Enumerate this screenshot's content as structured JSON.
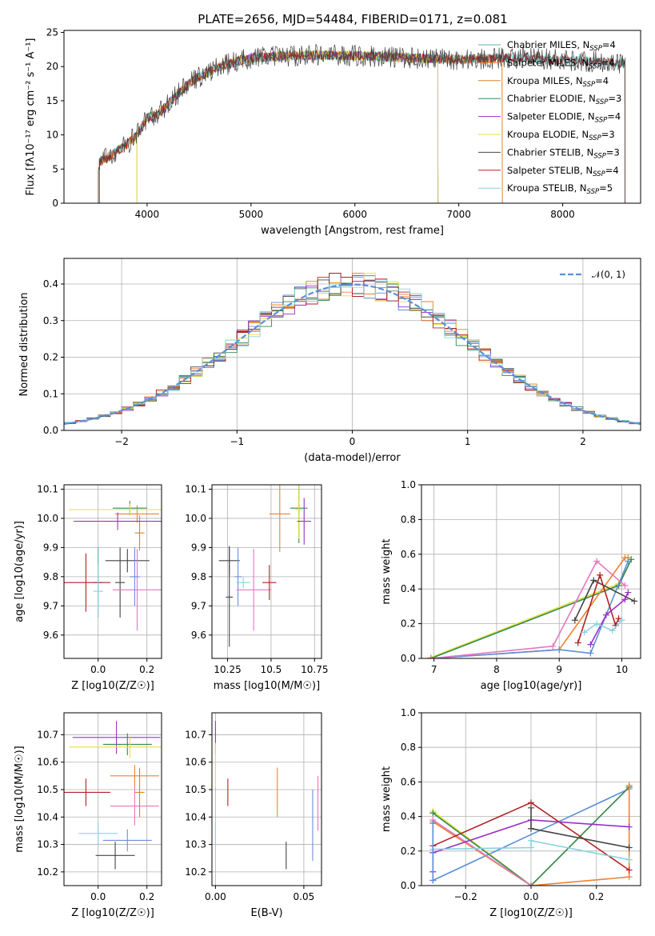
{
  "title": "PLATE=2656, MJD=54484, FIBERID=0171, z=0.081",
  "colors": {
    "Chabrier MILES": "#5ab4ac",
    "Salpeter MILES": "#f08030",
    "Kroupa MILES": "#d9832a",
    "Chabrier ELODIE": "#2e8b57",
    "Salpeter ELODIE": "#9b30c8",
    "Kroupa ELODIE": "#e8e03a",
    "Chabrier STELIB": "#444444",
    "Salpeter STELIB": "#b22222",
    "Kroupa STELIB": "#87d3e0",
    "normal": "#5b8fd8"
  },
  "chart_data": [
    {
      "type": "line",
      "panel": "spectrum",
      "title": "PLATE=2656, MJD=54484, FIBERID=0171, z=0.081",
      "xlabel": "wavelength [Angstrom, rest frame]",
      "ylabel": "Flux [fλ10⁻¹⁷ erg cm⁻² s⁻¹ A⁻¹]",
      "xlim": [
        3200,
        8750
      ],
      "ylim": [
        0,
        25.3
      ],
      "xticks": [
        4000,
        5000,
        6000,
        7000,
        8000
      ],
      "yticks": [
        0,
        5,
        10,
        15,
        20,
        25
      ],
      "legend_placement": "upper-right",
      "legend": [
        "Chabrier MILES, N_SSP=4",
        "Salpeter MILES, N_SSP=4",
        "Kroupa MILES, N_SSP=4",
        "Chabrier ELODIE, N_SSP=3",
        "Salpeter ELODIE, N_SSP=4",
        "Kroupa ELODIE, N_SSP=3",
        "Chabrier STELIB, N_SSP=3",
        "Salpeter STELIB, N_SSP=4",
        "Kroupa STELIB, N_SSP=5"
      ],
      "continuum": {
        "x": [
          3530,
          3600,
          3700,
          3800,
          3900,
          4000,
          4100,
          4200,
          4300,
          4400,
          4500,
          4700,
          5000,
          5300,
          5600,
          6000,
          6500,
          7000,
          7500,
          8000,
          8600
        ],
        "y": [
          6,
          6.5,
          7.5,
          8.5,
          10,
          12.5,
          13,
          14.5,
          16,
          17.5,
          18.5,
          20,
          21.3,
          21.5,
          21.7,
          21.6,
          21.3,
          21.0,
          21.3,
          21.0,
          20.5
        ]
      },
      "grid": false
    },
    {
      "type": "line",
      "panel": "residual-histogram",
      "xlabel": "(data-model)/error",
      "ylabel": "Normed distribution",
      "xlim": [
        -2.5,
        2.5
      ],
      "ylim": [
        0,
        0.47
      ],
      "xticks": [
        -2,
        -1,
        0,
        1,
        2
      ],
      "yticks": [
        0.0,
        0.1,
        0.2,
        0.3,
        0.4
      ],
      "legend": [
        "𝒩(0,1)"
      ],
      "legend_placement": "upper-right",
      "normal_curve": {
        "mean": 0,
        "sigma": 1
      },
      "bin_width": 0.1,
      "grid": true
    },
    {
      "type": "scatter",
      "panel": "age-vs-Z",
      "xlabel": "Z [log10(Z/Z☉)]",
      "ylabel": "age [log10(age/yr)]",
      "xlim": [
        -0.14,
        0.26
      ],
      "ylim": [
        9.52,
        10.115
      ],
      "xticks": [
        0.0,
        0.2
      ],
      "yticks": [
        9.6,
        9.7,
        9.8,
        9.9,
        10.0,
        10.1
      ],
      "points": [
        {
          "series": "Chabrier MILES",
          "x": 0.0,
          "y": 9.78,
          "xerr": 0.02,
          "yerr": 0.12
        },
        {
          "series": "Salpeter MILES",
          "x": 0.16,
          "y": 10.015,
          "xerr": 0.09,
          "yerr": 0.03
        },
        {
          "series": "Kroupa MILES",
          "x": 0.17,
          "y": 9.95,
          "xerr": 0.02,
          "yerr": 0.06
        },
        {
          "series": "Chabrier ELODIE",
          "x": 0.13,
          "y": 10.035,
          "xerr": 0.07,
          "yerr": 0.025
        },
        {
          "series": "Salpeter ELODIE",
          "x": 0.08,
          "y": 9.99,
          "xerr": 0.18,
          "yerr": 0.03
        },
        {
          "series": "Kroupa ELODIE",
          "x": 0.13,
          "y": 10.03,
          "xerr": 0.25,
          "yerr": 0.02
        },
        {
          "series": "Chabrier STELIB",
          "x": 0.12,
          "y": 9.855,
          "xerr": 0.09,
          "yerr": 0.04
        },
        {
          "series": "Chabrier STELIB",
          "x": 0.09,
          "y": 9.78,
          "xerr": 0.02,
          "yerr": 0.12
        },
        {
          "series": "Salpeter STELIB",
          "x": -0.05,
          "y": 9.78,
          "xerr": 0.1,
          "yerr": 0.1
        },
        {
          "series": "Kroupa STELIB",
          "x": 0.0,
          "y": 9.75,
          "xerr": 0.02,
          "yerr": 0.09
        },
        {
          "series": "pink",
          "x": 0.16,
          "y": 9.755,
          "xerr": 0.1,
          "yerr": 0.14
        },
        {
          "series": "blue",
          "x": 0.15,
          "y": 9.8,
          "xerr": 0.02,
          "yerr": 0.1
        }
      ],
      "grid": true
    },
    {
      "type": "scatter",
      "panel": "age-vs-mass",
      "xlabel": "mass [log10(M/M☉)]",
      "ylabel": "",
      "xlim": [
        10.16,
        10.79
      ],
      "ylim": [
        9.52,
        10.115
      ],
      "xticks": [
        10.25,
        10.5,
        10.75
      ],
      "yticks": [
        9.6,
        9.7,
        9.8,
        9.9,
        10.0,
        10.1
      ],
      "points": [
        {
          "series": "Chabrier STELIB",
          "x": 10.26,
          "y": 9.855,
          "xerr": 0.06,
          "yerr": 0.05
        },
        {
          "series": "Chabrier STELIB",
          "x": 10.26,
          "y": 9.73,
          "xerr": 0.02,
          "yerr": 0.17
        },
        {
          "series": "blue",
          "x": 10.31,
          "y": 9.8,
          "xerr": 0.02,
          "yerr": 0.1
        },
        {
          "series": "Kroupa STELIB",
          "x": 10.34,
          "y": 9.78,
          "xerr": 0.04,
          "yerr": 0.02
        },
        {
          "series": "pink",
          "x": 10.4,
          "y": 9.755,
          "xerr": 0.1,
          "yerr": 0.14
        },
        {
          "series": "Salpeter STELIB",
          "x": 10.49,
          "y": 9.78,
          "xerr": 0.04,
          "yerr": 0.06
        },
        {
          "series": "Salpeter MILES",
          "x": 10.55,
          "y": 10.015,
          "xerr": 0.06,
          "yerr": 0.13
        },
        {
          "series": "Chabrier ELODIE",
          "x": 10.66,
          "y": 10.035,
          "xerr": 0.05,
          "yerr": 0.12
        },
        {
          "series": "Kroupa ELODIE",
          "x": 10.66,
          "y": 10.03,
          "xerr": 0.02,
          "yerr": 0.1
        },
        {
          "series": "Salpeter ELODIE",
          "x": 10.69,
          "y": 9.99,
          "xerr": 0.04,
          "yerr": 0.08
        }
      ],
      "grid": true
    },
    {
      "type": "line",
      "panel": "mass-weight-vs-age",
      "xlabel": "age [log10(age/yr)]",
      "ylabel": "mass weight",
      "xlim": [
        6.8,
        10.3
      ],
      "ylim": [
        0,
        1
      ],
      "xticks": [
        7,
        8,
        9,
        10
      ],
      "yticks": [
        0.0,
        0.2,
        0.4,
        0.6,
        0.8,
        1.0
      ],
      "series": [
        {
          "color_key": "Kroupa ELODIE",
          "x": [
            6.95,
            9.95,
            10.15
          ],
          "y": [
            0.005,
            0.43,
            0.57
          ]
        },
        {
          "color_key": "Chabrier ELODIE",
          "x": [
            6.95,
            9.95,
            10.15
          ],
          "y": [
            0.0,
            0.42,
            0.57
          ]
        },
        {
          "color_key": "Salpeter MILES",
          "x": [
            6.95,
            9.0,
            10.05,
            10.1
          ],
          "y": [
            0.0,
            0.05,
            0.58,
            0.58
          ]
        },
        {
          "color_key": "normal",
          "x": [
            6.95,
            9.0,
            9.5,
            10.1
          ],
          "y": [
            0.0,
            0.05,
            0.03,
            0.56
          ]
        },
        {
          "color_key": "pink",
          "x": [
            6.95,
            8.9,
            9.6,
            10.05
          ],
          "y": [
            0.0,
            0.07,
            0.56,
            0.42
          ]
        },
        {
          "color_key": "Chabrier STELIB",
          "x": [
            9.25,
            9.55,
            10.2
          ],
          "y": [
            0.22,
            0.45,
            0.33
          ]
        },
        {
          "color_key": "Salpeter STELIB",
          "x": [
            9.3,
            9.65,
            9.9,
            9.95
          ],
          "y": [
            0.09,
            0.48,
            0.19,
            0.23
          ]
        },
        {
          "color_key": "Salpeter ELODIE",
          "x": [
            9.5,
            9.75,
            10.05,
            10.1
          ],
          "y": [
            0.08,
            0.25,
            0.34,
            0.38
          ]
        },
        {
          "color_key": "Kroupa STELIB",
          "x": [
            9.4,
            9.6,
            9.85,
            10.0
          ],
          "y": [
            0.15,
            0.2,
            0.16,
            0.22
          ]
        }
      ],
      "grid": true
    },
    {
      "type": "scatter",
      "panel": "mass-vs-Z",
      "xlabel": "Z [log10(Z/Z☉)]",
      "ylabel": "mass [log10(M/M☉)]",
      "xlim": [
        -0.14,
        0.26
      ],
      "ylim": [
        10.15,
        10.78
      ],
      "xticks": [
        0.0,
        0.2
      ],
      "yticks": [
        10.2,
        10.3,
        10.4,
        10.5,
        10.6,
        10.7
      ],
      "points": [
        {
          "series": "Salpeter ELODIE",
          "x": 0.075,
          "y": 10.69,
          "xerr": 0.18,
          "yerr": 0.06
        },
        {
          "series": "Chabrier ELODIE",
          "x": 0.12,
          "y": 10.665,
          "xerr": 0.1,
          "yerr": 0.04
        },
        {
          "series": "Kroupa ELODIE",
          "x": 0.13,
          "y": 10.655,
          "xerr": 0.25,
          "yerr": 0.04
        },
        {
          "series": "Salpeter MILES",
          "x": 0.15,
          "y": 10.55,
          "xerr": 0.1,
          "yerr": 0.04
        },
        {
          "series": "Kroupa MILES",
          "x": 0.17,
          "y": 10.49,
          "xerr": 0.02,
          "yerr": 0.09
        },
        {
          "series": "Salpeter STELIB",
          "x": -0.05,
          "y": 10.49,
          "xerr": 0.1,
          "yerr": 0.05
        },
        {
          "series": "pink",
          "x": 0.15,
          "y": 10.44,
          "xerr": 0.1,
          "yerr": 0.07
        },
        {
          "series": "Kroupa STELIB",
          "x": 0.0,
          "y": 10.34,
          "xerr": 0.08,
          "yerr": 0.04
        },
        {
          "series": "blue",
          "x": 0.12,
          "y": 10.315,
          "xerr": 0.1,
          "yerr": 0.04
        },
        {
          "series": "Chabrier STELIB",
          "x": 0.07,
          "y": 10.26,
          "xerr": 0.08,
          "yerr": 0.05
        }
      ],
      "grid": true
    },
    {
      "type": "scatter",
      "panel": "mass-vs-EBV",
      "xlabel": "E(B-V)",
      "ylabel": "",
      "xlim": [
        -0.002,
        0.06
      ],
      "ylim": [
        10.15,
        10.78
      ],
      "xticks": [
        0.0,
        0.05
      ],
      "yticks": [
        10.2,
        10.3,
        10.4,
        10.5,
        10.6,
        10.7
      ],
      "points": [
        {
          "series": "Salpeter ELODIE",
          "x": 0.0,
          "y": 10.69,
          "xerr": 0.0,
          "yerr": 0.06
        },
        {
          "series": "Kroupa ELODIE",
          "x": 0.0,
          "y": 10.59,
          "xerr": 0.0,
          "yerr": 0.08
        },
        {
          "series": "Salpeter STELIB",
          "x": 0.007,
          "y": 10.49,
          "xerr": 0.0,
          "yerr": 0.05
        },
        {
          "series": "Salpeter MILES",
          "x": 0.035,
          "y": 10.49,
          "xerr": 0.0,
          "yerr": 0.09
        },
        {
          "series": "pink",
          "x": 0.058,
          "y": 10.45,
          "xerr": 0.0,
          "yerr": 0.1
        },
        {
          "series": "blue",
          "x": 0.055,
          "y": 10.37,
          "xerr": 0.0,
          "yerr": 0.13
        },
        {
          "series": "Kroupa STELIB",
          "x": 0.0,
          "y": 10.34,
          "xerr": 0.0,
          "yerr": 0.04
        },
        {
          "series": "Chabrier STELIB",
          "x": 0.04,
          "y": 10.26,
          "xerr": 0.0,
          "yerr": 0.05
        }
      ],
      "grid": true
    },
    {
      "type": "line",
      "panel": "mass-weight-vs-Z",
      "xlabel": "Z [log10(Z/Z☉)]",
      "ylabel": "mass weight",
      "xlim": [
        -0.335,
        0.335
      ],
      "ylim": [
        0,
        1
      ],
      "xticks": [
        -0.2,
        0.0,
        0.2
      ],
      "yticks": [
        0.0,
        0.2,
        0.4,
        0.6,
        0.8,
        1.0
      ],
      "series": [
        {
          "color_key": "normal",
          "x": [
            -0.3,
            0.3
          ],
          "y": [
            0.03,
            0.56
          ]
        },
        {
          "color_key": "Kroupa ELODIE",
          "x": [
            -0.3,
            0.0,
            0.3
          ],
          "y": [
            0.43,
            0.0,
            0.57
          ]
        },
        {
          "color_key": "Chabrier ELODIE",
          "x": [
            -0.3,
            0.0,
            0.3
          ],
          "y": [
            0.42,
            0.0,
            0.57
          ]
        },
        {
          "color_key": "Salpeter MILES",
          "x": [
            -0.3,
            0.0,
            0.3,
            0.3
          ],
          "y": [
            0.37,
            0.0,
            0.05,
            0.58
          ]
        },
        {
          "color_key": "pink",
          "x": [
            -0.3,
            0.0
          ],
          "y": [
            0.38,
            0.0
          ]
        },
        {
          "color_key": "Salpeter STELIB",
          "x": [
            -0.3,
            0.0,
            0.3
          ],
          "y": [
            0.23,
            0.48,
            0.09
          ]
        },
        {
          "color_key": "Salpeter ELODIE",
          "x": [
            -0.3,
            0.0,
            0.3
          ],
          "y": [
            0.19,
            0.38,
            0.34
          ]
        },
        {
          "color_key": "Chabrier STELIB",
          "x": [
            0.0,
            0.0,
            0.3
          ],
          "y": [
            0.45,
            0.33,
            0.22
          ]
        },
        {
          "color_key": "Kroupa STELIB",
          "x": [
            -0.3,
            0.0,
            0.0,
            0.3
          ],
          "y": [
            0.21,
            0.22,
            0.26,
            0.15
          ]
        },
        {
          "color_key": "Salpeter ELODIE",
          "x": [
            -0.3,
            -0.3
          ],
          "y": [
            0.08,
            0.19
          ]
        },
        {
          "color_key": "normal",
          "x": [
            -0.3,
            -0.3
          ],
          "y": [
            0.03,
            0.36
          ]
        }
      ],
      "grid": true
    }
  ],
  "extra_colors": {
    "pink": "#e377c2",
    "blue": "#6a8fd8"
  }
}
